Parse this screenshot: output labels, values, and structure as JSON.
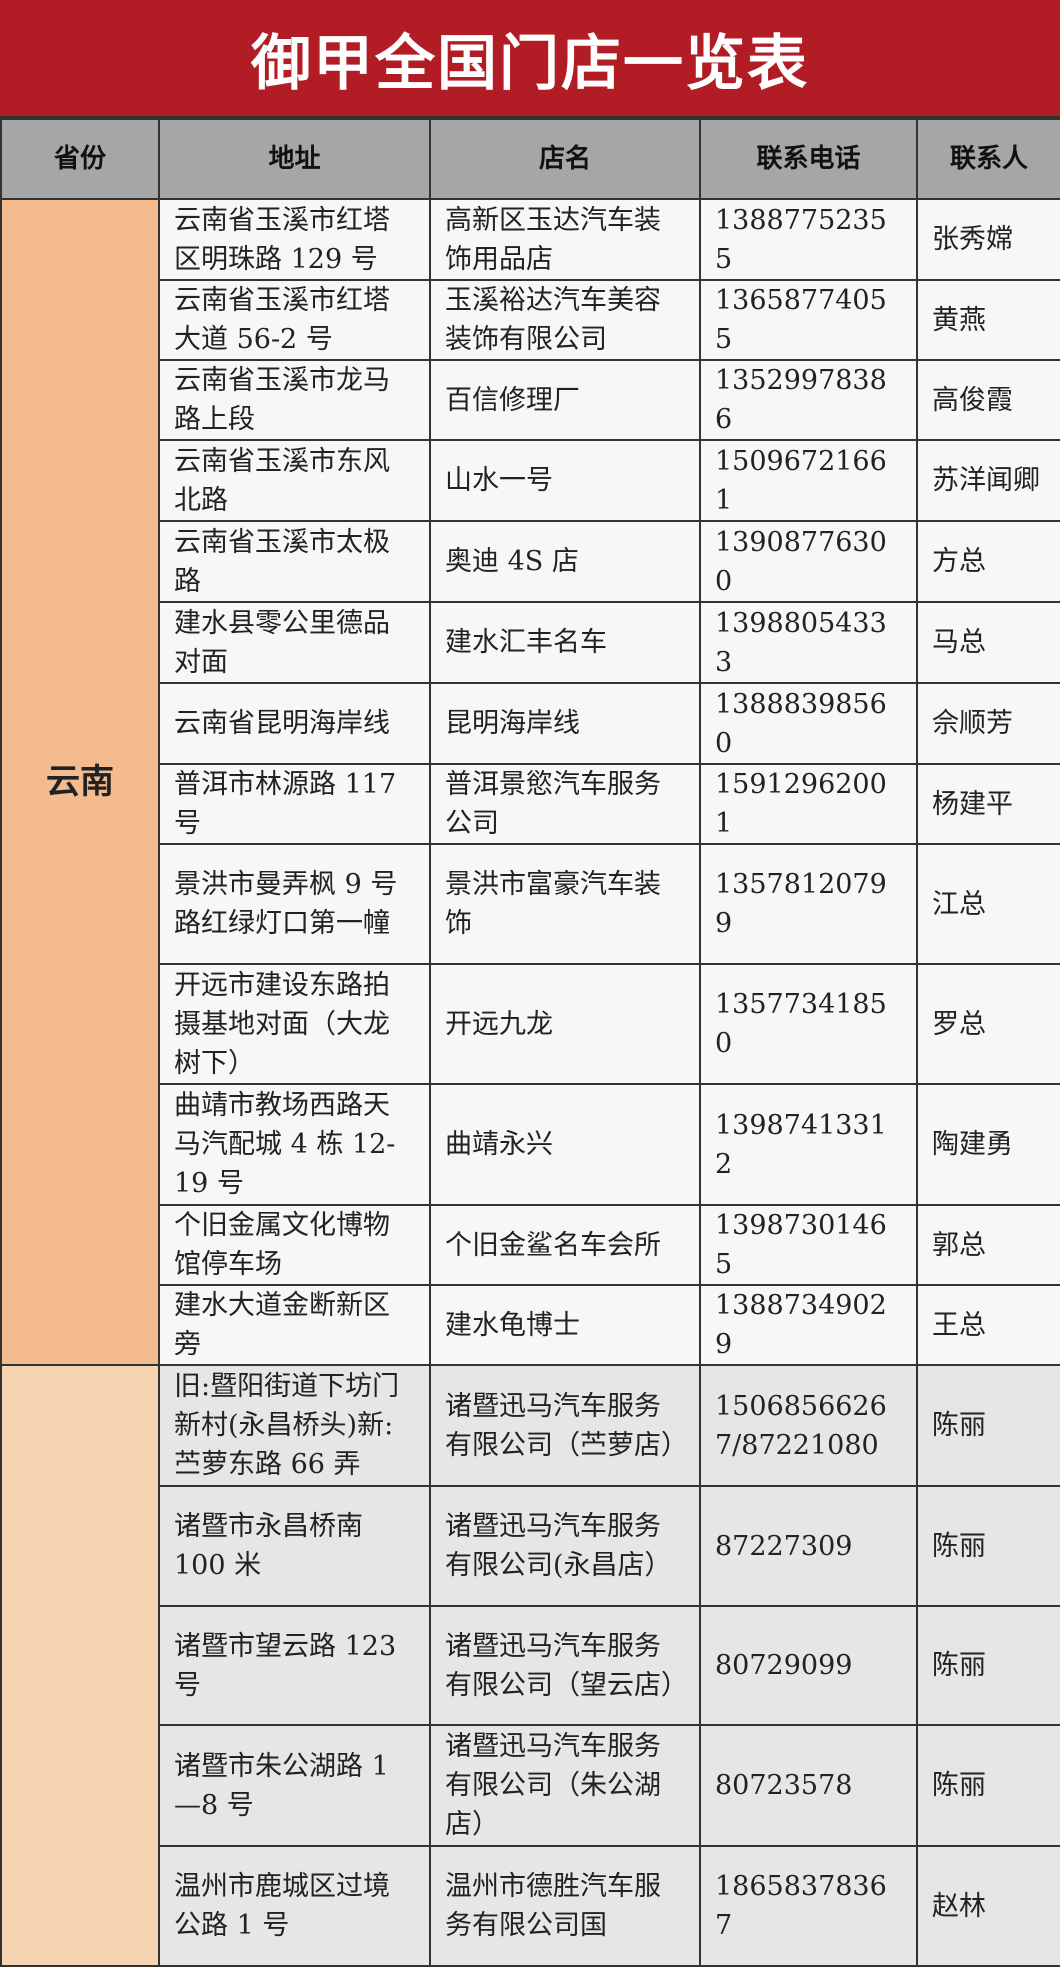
{
  "title": "御甲全国门店一览表",
  "headers": [
    "省份",
    "地址",
    "店名",
    "联系电话",
    "联系人"
  ],
  "colors": {
    "title_bg": "#b21d25",
    "header_bg": "#a6a6a6",
    "yunnan_bg": "#f4bb8e",
    "group2_bg": "#f8d3b1"
  },
  "groups": [
    {
      "province": "云南",
      "rows": [
        {
          "address": "云南省玉溪市红塔区明珠路 129 号",
          "store": "高新区玉达汽车装饰用品店",
          "phone": "13887752355",
          "contact": "张秀嫦"
        },
        {
          "address": "云南省玉溪市红塔大道 56-2 号",
          "store": "玉溪裕达汽车美容装饰有限公司",
          "phone": "13658774055",
          "contact": "黄燕"
        },
        {
          "address": "云南省玉溪市龙马路上段",
          "store": "百信修理厂",
          "phone": "13529978386",
          "contact": "高俊霞"
        },
        {
          "address": "云南省玉溪市东风北路",
          "store": "山水一号",
          "phone": "15096721661",
          "contact": "苏洋闻卿"
        },
        {
          "address": "云南省玉溪市太极路",
          "store": "奥迪 4S 店",
          "phone": "13908776300",
          "contact": "方总"
        },
        {
          "address": "建水县零公里德品对面",
          "store": "建水汇丰名车",
          "phone": "13988054333",
          "contact": "马总"
        },
        {
          "address": "云南省昆明海岸线",
          "store": "昆明海岸线",
          "phone": "13888398560",
          "contact": "佘顺芳"
        },
        {
          "address": "普洱市林源路 117 号",
          "store": "普洱景慾汽车服务公司",
          "phone": "15912962001",
          "contact": "杨建平"
        },
        {
          "address": "景洪市曼弄枫 9 号路红绿灯口第一幢",
          "store": "景洪市富豪汽车装饰",
          "phone": "13578120799",
          "contact": "江总"
        },
        {
          "address": "开远市建设东路拍摄基地对面（大龙树下）",
          "store": "开远九龙",
          "phone": "13577341850",
          "contact": "罗总"
        },
        {
          "address": "曲靖市教场西路天马汽配城 4 栋 12-19 号",
          "store": "曲靖永兴",
          "phone": "13987413312",
          "contact": "陶建勇"
        },
        {
          "address": "个旧金属文化博物馆停车场",
          "store": "个旧金鲨名车会所",
          "phone": "13987301465",
          "contact": "郭总"
        },
        {
          "address": "建水大道金断新区旁",
          "store": "建水龟博士",
          "phone": "13887349029",
          "contact": "王总"
        }
      ]
    },
    {
      "province": "",
      "rows": [
        {
          "address": "旧:暨阳街道下坊门新村(永昌桥头)新:苎萝东路 66 弄",
          "store": "诸暨迅马汽车服务有限公司（苎萝店）",
          "phone": "15068566267/87221080",
          "contact": "陈丽"
        },
        {
          "address": "诸暨市永昌桥南 100 米",
          "store": "诸暨迅马汽车服务有限公司(永昌店）",
          "phone": "87227309",
          "contact": "陈丽"
        },
        {
          "address": "诸暨市望云路 123 号",
          "store": "诸暨迅马汽车服务有限公司（望云店）",
          "phone": "80729099",
          "contact": "陈丽"
        },
        {
          "address": "诸暨市朱公湖路 1—8 号",
          "store": "诸暨迅马汽车服务有限公司（朱公湖店）",
          "phone": "80723578",
          "contact": "陈丽"
        },
        {
          "address": "温州市鹿城区过境公路 1 号",
          "store": "温州市德胜汽车服务有限公司国",
          "phone": "18658378367",
          "contact": "赵林"
        }
      ]
    }
  ]
}
